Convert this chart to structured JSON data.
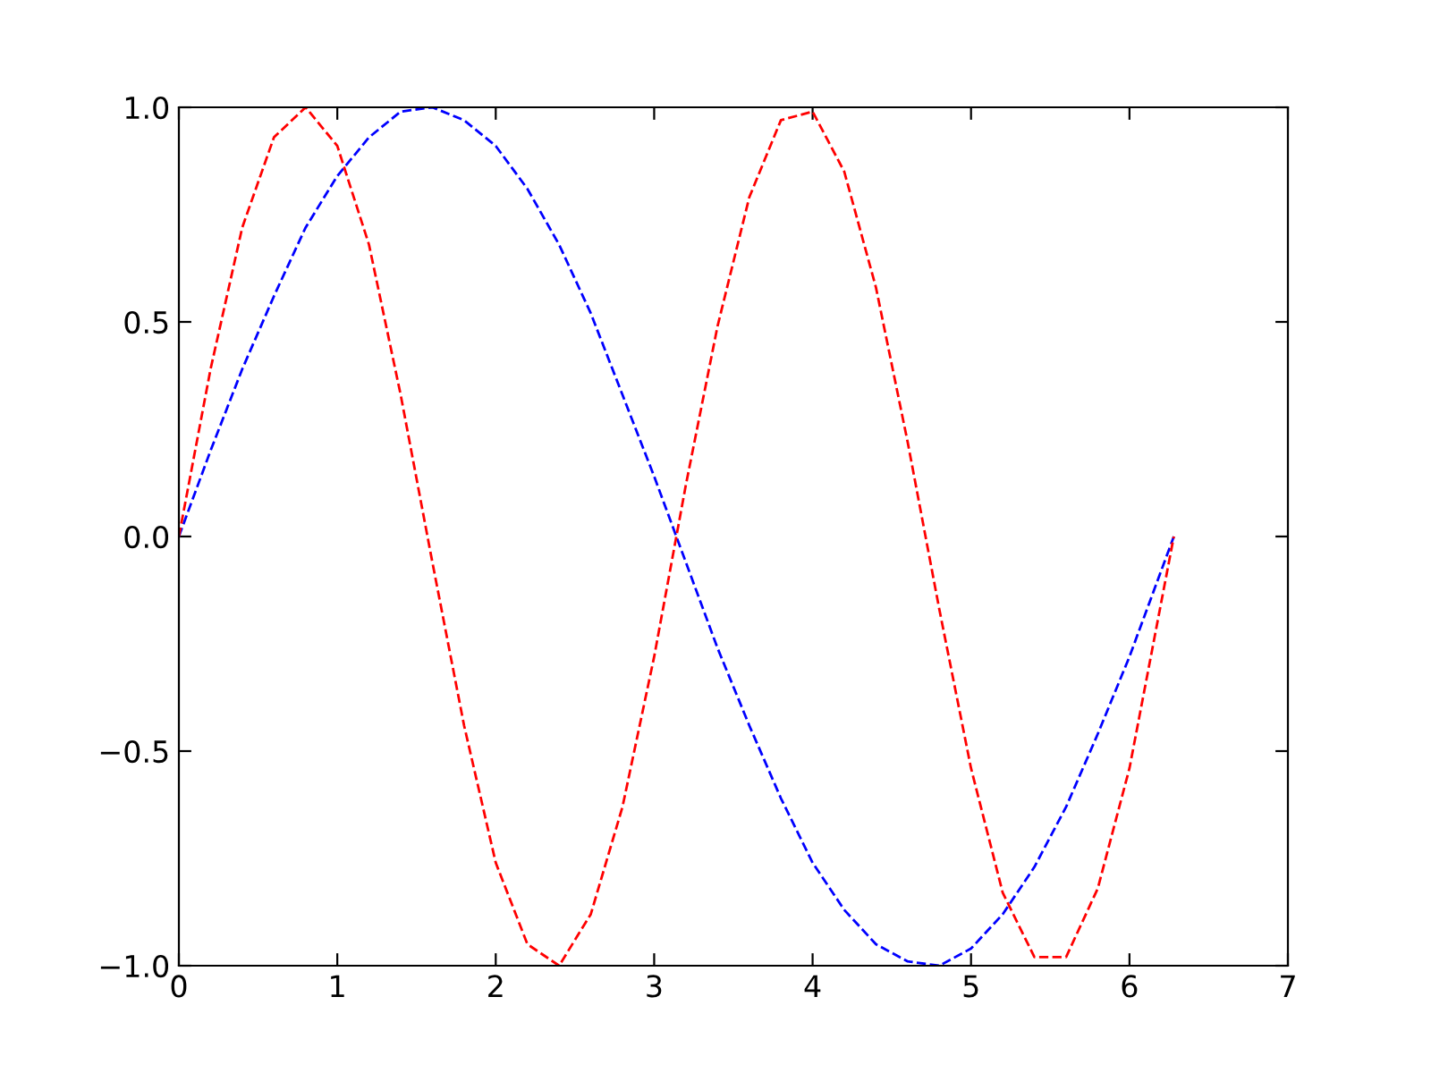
{
  "chart_data": {
    "type": "line",
    "line_style": "dashed",
    "marker": "none",
    "grid": false,
    "legend": false,
    "xlim": [
      0,
      7
    ],
    "ylim": [
      -1.0,
      1.0
    ],
    "xticks": [
      0,
      1,
      2,
      3,
      4,
      5,
      6,
      7
    ],
    "yticks": [
      {
        "value": -1.0,
        "label": "−1.0"
      },
      {
        "value": -0.5,
        "label": "−0.5"
      },
      {
        "value": 0.0,
        "label": "0.0"
      },
      {
        "value": 0.5,
        "label": "0.5"
      },
      {
        "value": 1.0,
        "label": "1.0"
      }
    ],
    "x": [
      0,
      0.2,
      0.4,
      0.6,
      0.8,
      1.0,
      1.2,
      1.4,
      1.6,
      1.8,
      2.0,
      2.2,
      2.4,
      2.6,
      2.8,
      3.0,
      3.2,
      3.4,
      3.6,
      3.8,
      4.0,
      4.2,
      4.4,
      4.6,
      4.8,
      5.0,
      5.2,
      5.4,
      5.6,
      5.8,
      6.0,
      6.28
    ],
    "series": [
      {
        "color": "#0000ff",
        "values": [
          0,
          0.2,
          0.39,
          0.56,
          0.72,
          0.84,
          0.93,
          0.99,
          1.0,
          0.97,
          0.91,
          0.81,
          0.68,
          0.52,
          0.33,
          0.14,
          -0.06,
          -0.26,
          -0.44,
          -0.61,
          -0.76,
          -0.87,
          -0.95,
          -0.99,
          -1.0,
          -0.96,
          -0.88,
          -0.77,
          -0.63,
          -0.46,
          -0.28,
          0
        ]
      },
      {
        "color": "#ff0000",
        "values": [
          0,
          0.39,
          0.72,
          0.93,
          1.0,
          0.91,
          0.68,
          0.33,
          -0.06,
          -0.44,
          -0.76,
          -0.95,
          -1.0,
          -0.88,
          -0.63,
          -0.28,
          0.12,
          0.49,
          0.79,
          0.97,
          0.99,
          0.85,
          0.58,
          0.22,
          -0.17,
          -0.54,
          -0.83,
          -0.98,
          -0.98,
          -0.82,
          -0.54,
          0
        ]
      }
    ]
  }
}
